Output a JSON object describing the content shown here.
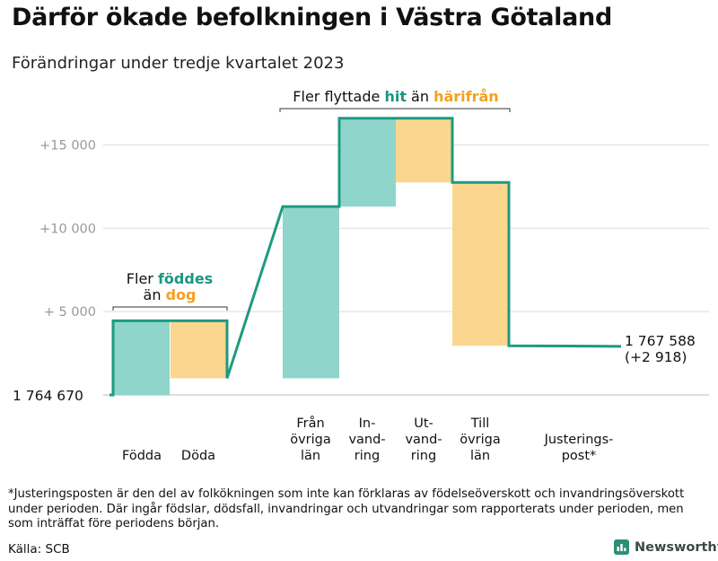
{
  "header": {
    "title": "Därför ökade befolkningen i Västra Götaland",
    "subtitle": "Förändringar under tredje kvartalet 2023"
  },
  "colors": {
    "increase": "#8fd5cc",
    "decrease": "#fbd68f",
    "line": "#1e9a80",
    "accent_teal": "#1a9682",
    "accent_orange": "#f5a01e",
    "grid": "#dddddd",
    "tick": "#999999"
  },
  "chart_data": {
    "type": "waterfall",
    "title": "Därför ökade befolkningen i Västra Götaland",
    "subtitle": "Förändringar under tredje kvartalet 2023",
    "start_value": 1764670,
    "start_label": "1 764 670",
    "end_value": 1767588,
    "end_label": "1 767 588",
    "end_change_label": "(+2 918)",
    "ylim": [
      0,
      17000
    ],
    "yticks": [
      {
        "value": 5000,
        "label": "+ 5 000"
      },
      {
        "value": 10000,
        "label": "+10 000"
      },
      {
        "value": 15000,
        "label": "+15 000"
      }
    ],
    "steps": [
      {
        "label": [
          "Födda"
        ],
        "start": 0,
        "end": 4450,
        "kind": "increase"
      },
      {
        "label": [
          "Döda"
        ],
        "start": 4450,
        "end": 1000,
        "kind": "decrease"
      },
      {
        "label": [
          "Från",
          "övriga",
          "län"
        ],
        "start": 1000,
        "end": 11300,
        "kind": "increase"
      },
      {
        "label": [
          "In-",
          "vand-",
          "ring"
        ],
        "start": 11300,
        "end": 16600,
        "kind": "increase"
      },
      {
        "label": [
          "Ut-",
          "vand-",
          "ring"
        ],
        "start": 16600,
        "end": 12750,
        "kind": "decrease"
      },
      {
        "label": [
          "Till",
          "övriga",
          "län"
        ],
        "start": 12750,
        "end": 2950,
        "kind": "decrease"
      },
      {
        "label": [
          "Justerings-",
          "post*"
        ],
        "start": 2950,
        "end": 2918,
        "kind": "adjustment"
      }
    ],
    "annotations": [
      {
        "lines": [
          [
            {
              "text": "Fler "
            },
            {
              "text": "föddes",
              "style": "teal"
            }
          ],
          [
            {
              "text": "än "
            },
            {
              "text": "dog",
              "style": "orange"
            }
          ]
        ]
      },
      {
        "lines": [
          [
            {
              "text": "Fler flyttade "
            },
            {
              "text": "hit",
              "style": "teal"
            },
            {
              "text": " än "
            },
            {
              "text": "härifrån",
              "style": "orange"
            }
          ]
        ]
      }
    ]
  },
  "footnote": "*Justeringsposten är den del av folkökningen som inte kan förklaras av födelseöverskott och invandringsöverskott under perioden. Där ingår födslar, dödsfall, invandringar och utvandringar som rapporterats under perioden, men som inträffat före periodens början.",
  "source": "Källa: SCB",
  "brand": {
    "name": "Newsworthy",
    "icon": "newsworthy-logo-icon"
  }
}
